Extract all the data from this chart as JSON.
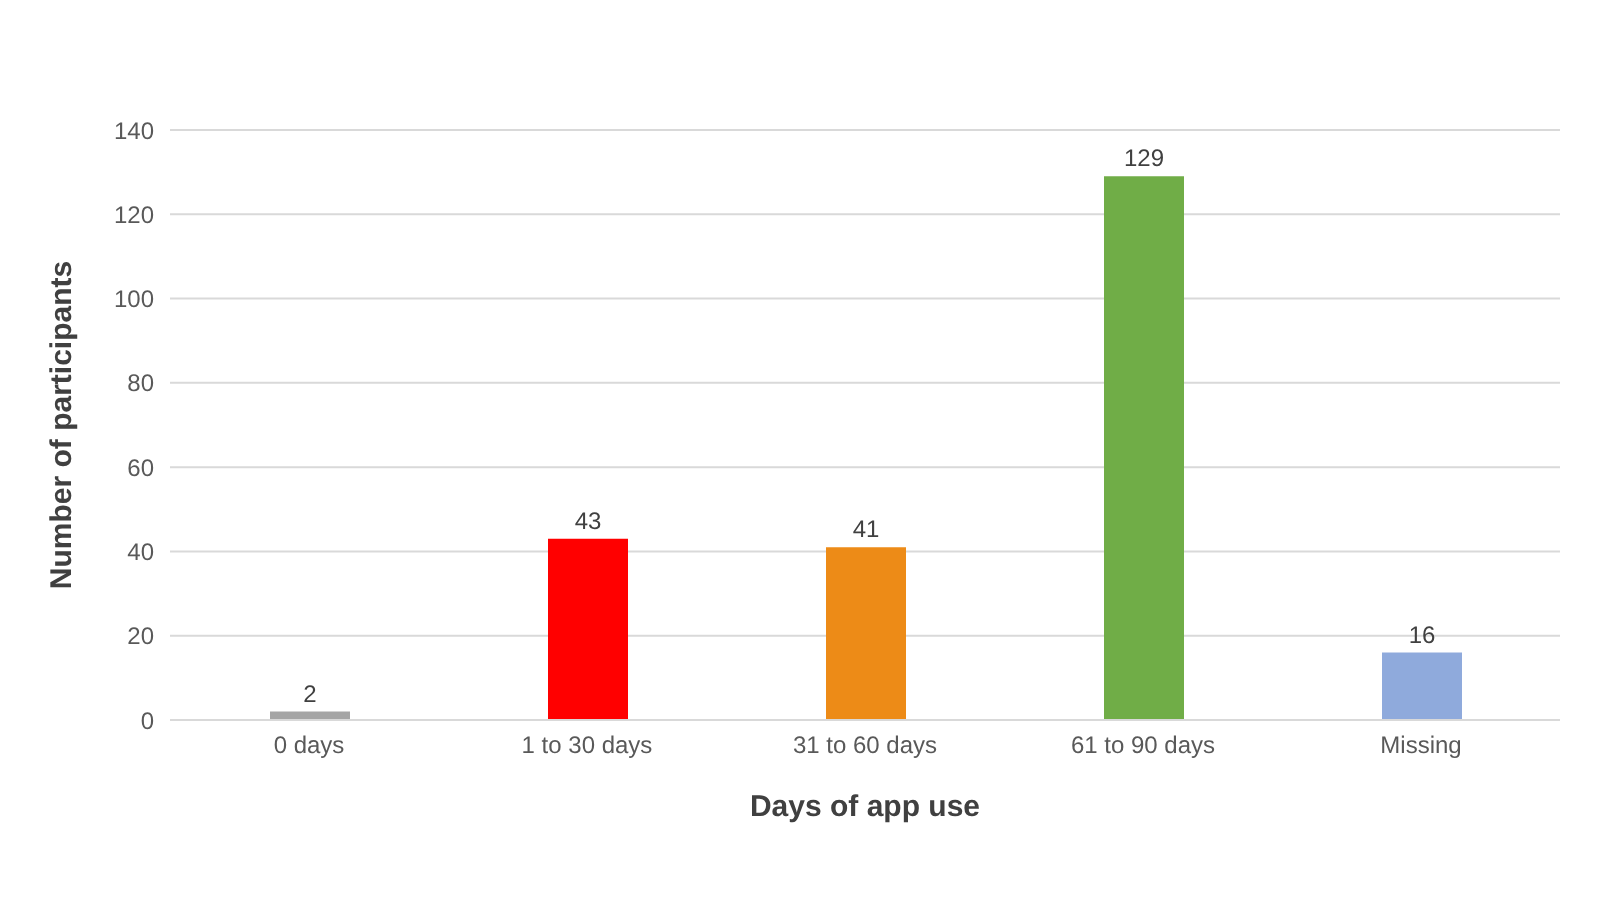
{
  "chart_data": {
    "type": "bar",
    "xlabel": "Days of app use",
    "ylabel": "Number of participants",
    "categories": [
      "0 days",
      "1 to 30 days",
      "31 to 60 days",
      "61 to 90 days",
      "Missing"
    ],
    "values": [
      2,
      43,
      41,
      129,
      16
    ],
    "colors": [
      "#a5a5a5",
      "#ff0000",
      "#ed8b17",
      "#70ad47",
      "#8faadc"
    ],
    "ylim": [
      0,
      140
    ],
    "yticks": [
      0,
      20,
      40,
      60,
      80,
      100,
      120,
      140
    ],
    "grid": "y",
    "data_labels": true
  }
}
